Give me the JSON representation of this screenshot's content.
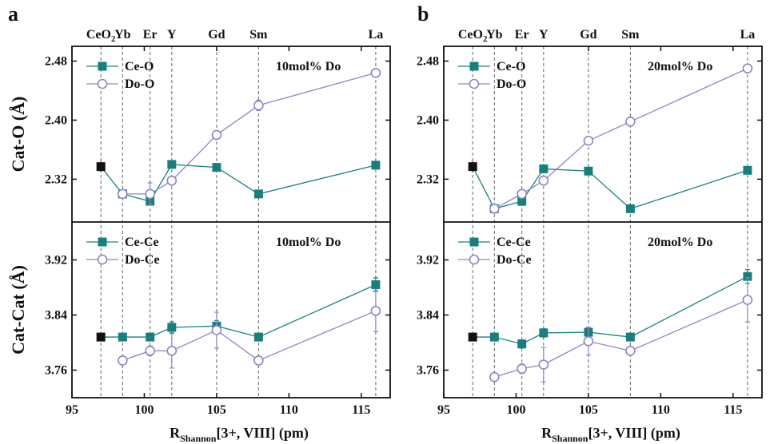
{
  "figure": {
    "x_axis_label_main": "R",
    "x_axis_label_sub": "Shannon",
    "x_axis_label_rest": "[3+, VIII] (pm)"
  },
  "colors": {
    "ce": "#17807e",
    "do": "#8c86c4",
    "ref": "#111111",
    "frame": "#111111",
    "guide": "#666666"
  },
  "chart_data": [
    {
      "panel": "a",
      "type": "scatter",
      "xlim": [
        95,
        117
      ],
      "xticks": [
        95,
        100,
        105,
        110,
        115
      ],
      "elements": [
        {
          "label": "CeO",
          "sub": "2",
          "x": 97
        },
        {
          "label": "Yb",
          "x": 98.5
        },
        {
          "label": "Er",
          "x": 100.4
        },
        {
          "label": "Y",
          "x": 101.9
        },
        {
          "label": "Gd",
          "x": 105.0
        },
        {
          "label": "Sm",
          "x": 107.9
        },
        {
          "label": "La",
          "x": 116.0
        }
      ],
      "subplots": [
        {
          "position": "top",
          "ylabel": "Cat-O (Å)",
          "ylim": [
            2.262,
            2.5
          ],
          "yticks": [
            2.32,
            2.4,
            2.48
          ],
          "note": "10mol% Do",
          "reference": {
            "x": 97,
            "y": 2.337,
            "err": 0.007
          },
          "series": [
            {
              "name": "Ce-O",
              "marker": "square",
              "color_key": "ce",
              "x": [
                98.5,
                100.4,
                101.9,
                105.0,
                107.9,
                116.0
              ],
              "y": [
                2.3,
                2.29,
                2.34,
                2.336,
                2.3,
                2.339
              ],
              "err": [
                0.004,
                0.004,
                0.004,
                0.004,
                0.004,
                0.004
              ]
            },
            {
              "name": "Do-O",
              "marker": "circle",
              "color_key": "do",
              "x": [
                98.5,
                100.4,
                101.9,
                105.0,
                107.9,
                116.0
              ],
              "y": [
                2.3,
                2.3,
                2.318,
                2.38,
                2.42,
                2.464
              ],
              "err": [
                0.005,
                0.015,
                0.005,
                0.005,
                0.007,
                0.004
              ]
            }
          ]
        },
        {
          "position": "bottom",
          "ylabel": "Cat-Cat (Å)",
          "ylim": [
            3.72,
            3.975
          ],
          "yticks": [
            3.76,
            3.84,
            3.92
          ],
          "note": "10mol% Do",
          "reference": {
            "x": 97,
            "y": 3.808,
            "err": 0.006
          },
          "series": [
            {
              "name": "Ce-Ce",
              "marker": "square",
              "color_key": "ce",
              "x": [
                98.5,
                100.4,
                101.9,
                105.0,
                107.9,
                116.0
              ],
              "y": [
                3.808,
                3.808,
                3.822,
                3.824,
                3.808,
                3.884
              ],
              "err": [
                0.005,
                0.005,
                0.008,
                0.008,
                0.005,
                0.01
              ]
            },
            {
              "name": "Do-Ce",
              "marker": "circle",
              "color_key": "do",
              "x": [
                98.5,
                100.4,
                101.9,
                105.0,
                107.9,
                116.0
              ],
              "y": [
                3.774,
                3.788,
                3.788,
                3.818,
                3.774,
                3.846
              ],
              "err": [
                0.006,
                0.007,
                0.025,
                0.026,
                0.006,
                0.03
              ]
            }
          ]
        }
      ]
    },
    {
      "panel": "b",
      "type": "scatter",
      "xlim": [
        95,
        117
      ],
      "xticks": [
        95,
        100,
        105,
        110,
        115
      ],
      "elements": [
        {
          "label": "CeO",
          "sub": "2",
          "x": 97
        },
        {
          "label": "Yb",
          "x": 98.5
        },
        {
          "label": "Er",
          "x": 100.4
        },
        {
          "label": "Y",
          "x": 101.9
        },
        {
          "label": "Gd",
          "x": 105.0
        },
        {
          "label": "Sm",
          "x": 107.9
        },
        {
          "label": "La",
          "x": 116.0
        }
      ],
      "subplots": [
        {
          "position": "top",
          "ylabel": "",
          "ylim": [
            2.262,
            2.5
          ],
          "yticks": [
            2.32,
            2.4,
            2.48
          ],
          "note": "20mol% Do",
          "reference": {
            "x": 97,
            "y": 2.337,
            "err": 0.007
          },
          "series": [
            {
              "name": "Ce-O",
              "marker": "square",
              "color_key": "ce",
              "x": [
                98.5,
                100.4,
                101.9,
                105.0,
                107.9,
                116.0
              ],
              "y": [
                2.28,
                2.29,
                2.334,
                2.331,
                2.28,
                2.332
              ],
              "err": [
                0.004,
                0.004,
                0.004,
                0.004,
                0.004,
                0.004
              ]
            },
            {
              "name": "Do-O",
              "marker": "circle",
              "color_key": "do",
              "x": [
                98.5,
                100.4,
                101.9,
                105.0,
                107.9,
                116.0
              ],
              "y": [
                2.28,
                2.3,
                2.318,
                2.372,
                2.398,
                2.47
              ],
              "err": [
                0.004,
                0.005,
                0.004,
                0.005,
                0.006,
                0.004
              ]
            }
          ]
        },
        {
          "position": "bottom",
          "ylabel": "",
          "ylim": [
            3.72,
            3.975
          ],
          "yticks": [
            3.76,
            3.84,
            3.92
          ],
          "note": "20mol% Do",
          "reference": {
            "x": 97,
            "y": 3.808,
            "err": 0.006
          },
          "series": [
            {
              "name": "Ce-Ce",
              "marker": "square",
              "color_key": "ce",
              "x": [
                98.5,
                100.4,
                101.9,
                105.0,
                107.9,
                116.0
              ],
              "y": [
                3.808,
                3.798,
                3.814,
                3.815,
                3.808,
                3.896
              ],
              "err": [
                0.005,
                0.006,
                0.006,
                0.006,
                0.005,
                0.01
              ]
            },
            {
              "name": "Do-Ce",
              "marker": "circle",
              "color_key": "do",
              "x": [
                98.5,
                100.4,
                101.9,
                105.0,
                107.9,
                116.0
              ],
              "y": [
                3.75,
                3.762,
                3.768,
                3.802,
                3.788,
                3.862
              ],
              "err": [
                0.006,
                0.007,
                0.025,
                0.02,
                0.006,
                0.032
              ]
            }
          ]
        }
      ]
    }
  ]
}
